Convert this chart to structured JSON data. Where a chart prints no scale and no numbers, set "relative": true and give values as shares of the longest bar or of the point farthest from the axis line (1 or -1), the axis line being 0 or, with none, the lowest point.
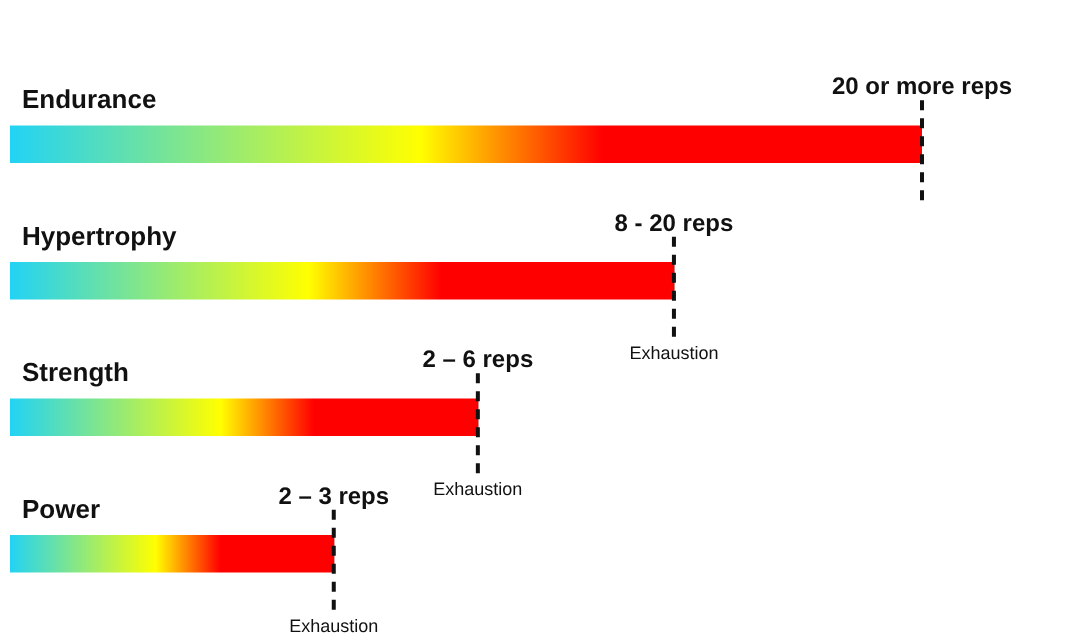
{
  "chart_data": {
    "type": "bar",
    "orientation": "horizontal",
    "relative": true,
    "categories": [
      "Endurance",
      "Hypertrophy",
      "Strength",
      "Power"
    ],
    "series": [
      {
        "color": "#ff0000",
        "values": [
          1,
          0.728,
          0.513,
          0.355
        ]
      }
    ],
    "annotations": [
      {
        "text": "20 or more reps",
        "x": 1,
        "y": "Endurance"
      },
      {
        "text": "8 - 20 reps",
        "x": 0.728,
        "y": "Hypertrophy"
      },
      {
        "text": "Exhaustion",
        "x": 0.728,
        "y": "Hypertrophy"
      },
      {
        "text": "2 – 6 reps",
        "x": 0.513,
        "y": "Strength"
      },
      {
        "text": "Exhaustion",
        "x": 0.513,
        "y": "Strength"
      },
      {
        "text": "2 – 3 reps",
        "x": 0.355,
        "y": "Power"
      },
      {
        "text": "Exhaustion",
        "x": 0.355,
        "y": "Power"
      }
    ]
  }
}
